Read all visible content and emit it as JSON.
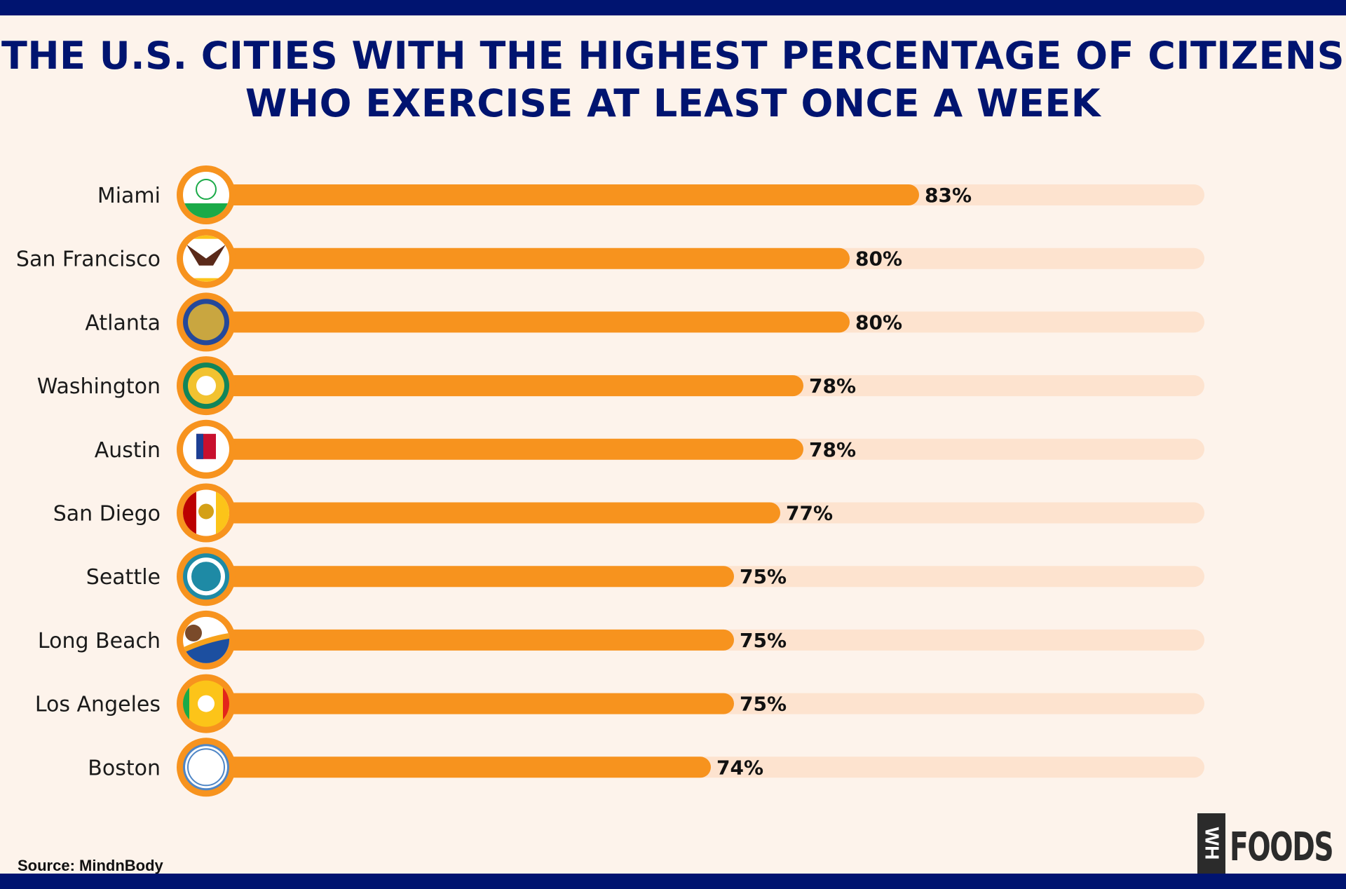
{
  "title_lines": [
    "THE U.S. CITIES WITH THE HIGHEST PERCENTAGE OF CITIZENS",
    "WHO EXERCISE AT LEAST ONCE A WEEK"
  ],
  "source": "Source: MindnBody",
  "logo": {
    "box": "WH",
    "text": "FOODS"
  },
  "colors": {
    "navy": "#001470",
    "bar": "#f7931e",
    "track": "#fde3cf",
    "background": "#fdf3eb"
  },
  "chart_data": {
    "type": "bar",
    "orientation": "horizontal",
    "title": "THE U.S. CITIES WITH THE HIGHEST PERCENTAGE OF CITIZENS WHO EXERCISE AT LEAST ONCE A WEEK",
    "categories": [
      "Miami",
      "San Francisco",
      "Atlanta",
      "Washington",
      "Austin",
      "San Diego",
      "Seattle",
      "Long Beach",
      "Los Angeles",
      "Boston"
    ],
    "values": [
      83,
      80,
      80,
      78,
      78,
      77,
      75,
      75,
      75,
      74
    ],
    "labels": [
      "83%",
      "80%",
      "80%",
      "78%",
      "78%",
      "77%",
      "75%",
      "75%",
      "75%",
      "74%"
    ],
    "unit": "%",
    "grid": false,
    "flag_icons": [
      "miami-flag",
      "san-francisco-flag",
      "atlanta-flag",
      "washington-flag",
      "austin-flag",
      "san-diego-flag",
      "seattle-flag",
      "long-beach-flag",
      "los-angeles-flag",
      "boston-flag"
    ]
  }
}
